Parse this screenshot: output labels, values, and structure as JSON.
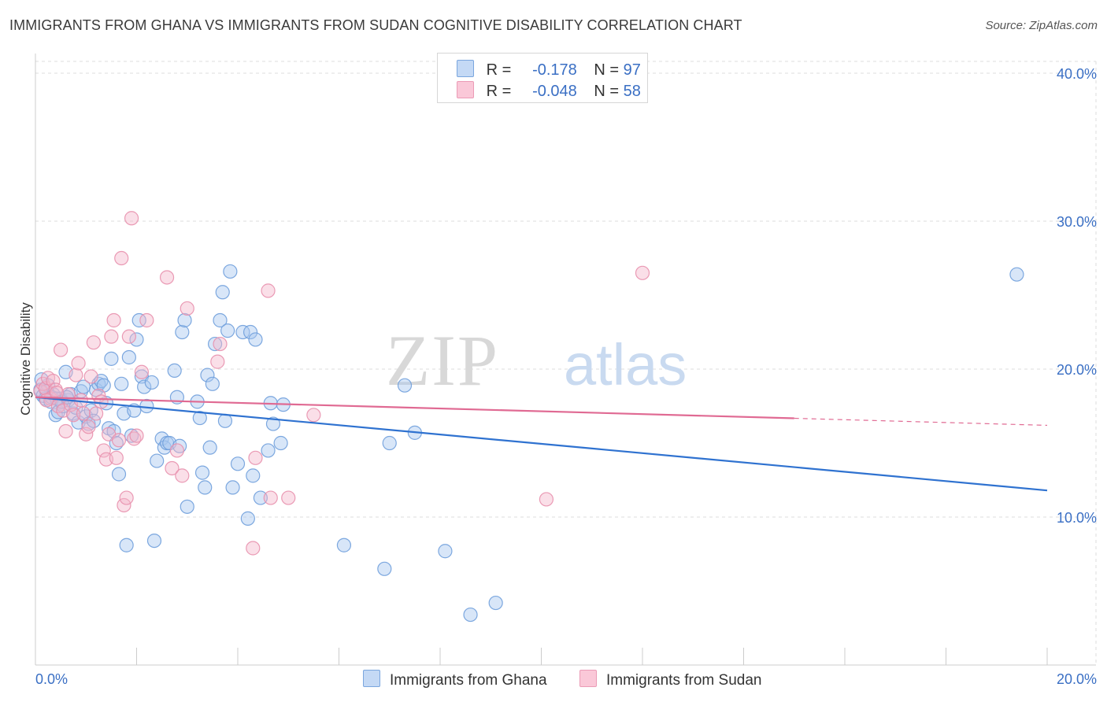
{
  "title": "IMMIGRANTS FROM GHANA VS IMMIGRANTS FROM SUDAN COGNITIVE DISABILITY CORRELATION CHART",
  "source": "Source: ZipAtlas.com",
  "watermark": {
    "zip": "ZIP",
    "atlas": "atlas"
  },
  "legend": {
    "ghana": {
      "r_label": "R =",
      "r_value": "-0.178",
      "n_label": "N =",
      "n_value": "97"
    },
    "sudan": {
      "r_label": "R =",
      "r_value": "-0.048",
      "n_label": "N =",
      "n_value": "58"
    }
  },
  "bottom_legend": {
    "ghana": "Immigrants from Ghana",
    "sudan": "Immigrants from Sudan"
  },
  "colors": {
    "ghana_fill": "#a9c8f0",
    "ghana_stroke": "#6f9fdb",
    "ghana_line": "#2f72d0",
    "sudan_fill": "#f5b8cc",
    "sudan_stroke": "#e890ad",
    "sudan_line": "#e06a93",
    "axis_text": "#3a6fc4",
    "grid": "#dddddd"
  },
  "chart_data": {
    "type": "scatter",
    "title": "IMMIGRANTS FROM GHANA VS IMMIGRANTS FROM SUDAN COGNITIVE DISABILITY CORRELATION CHART",
    "xlabel": "",
    "ylabel": "Cognitive Disability",
    "xlim": [
      0,
      20
    ],
    "ylim": [
      0,
      40.8
    ],
    "x_tick_labels": [
      "0.0%",
      "20.0%"
    ],
    "y_ticks": [
      10,
      20,
      30,
      40
    ],
    "y_tick_labels": [
      "10.0%",
      "20.0%",
      "30.0%",
      "40.0%"
    ],
    "grid": true,
    "series": [
      {
        "name": "Immigrants from Ghana",
        "r": -0.178,
        "n": 97,
        "trend": {
          "x": [
            0,
            20
          ],
          "y": [
            18.1,
            11.8
          ],
          "dashed_from": null
        },
        "points": [
          [
            0.1,
            18.6
          ],
          [
            0.15,
            18.2
          ],
          [
            0.2,
            18.0
          ],
          [
            0.25,
            18.9
          ],
          [
            0.3,
            17.8
          ],
          [
            0.35,
            18.3
          ],
          [
            0.4,
            16.9
          ],
          [
            0.45,
            17.1
          ],
          [
            0.5,
            18.0
          ],
          [
            0.55,
            17.5
          ],
          [
            0.6,
            19.8
          ],
          [
            0.65,
            17.9
          ],
          [
            0.7,
            18.3
          ],
          [
            0.75,
            17.0
          ],
          [
            0.8,
            17.4
          ],
          [
            0.85,
            16.4
          ],
          [
            0.9,
            18.5
          ],
          [
            0.95,
            18.8
          ],
          [
            1.0,
            16.8
          ],
          [
            1.05,
            16.3
          ],
          [
            1.1,
            17.2
          ],
          [
            1.15,
            16.5
          ],
          [
            1.2,
            18.6
          ],
          [
            1.25,
            19.0
          ],
          [
            1.3,
            19.2
          ],
          [
            1.35,
            18.9
          ],
          [
            1.4,
            17.7
          ],
          [
            1.45,
            16.0
          ],
          [
            1.5,
            20.7
          ],
          [
            1.55,
            15.8
          ],
          [
            1.6,
            15.0
          ],
          [
            1.65,
            12.9
          ],
          [
            1.7,
            19.0
          ],
          [
            1.75,
            17.0
          ],
          [
            1.8,
            8.1
          ],
          [
            1.85,
            20.8
          ],
          [
            1.9,
            15.5
          ],
          [
            1.95,
            17.2
          ],
          [
            2.0,
            22.0
          ],
          [
            2.05,
            23.3
          ],
          [
            2.1,
            19.5
          ],
          [
            2.15,
            18.8
          ],
          [
            2.2,
            17.5
          ],
          [
            2.3,
            19.1
          ],
          [
            2.35,
            8.4
          ],
          [
            2.4,
            13.8
          ],
          [
            2.5,
            15.3
          ],
          [
            2.55,
            14.7
          ],
          [
            2.6,
            15.0
          ],
          [
            2.65,
            15.0
          ],
          [
            2.75,
            19.9
          ],
          [
            2.8,
            18.1
          ],
          [
            2.85,
            14.8
          ],
          [
            2.9,
            22.5
          ],
          [
            2.95,
            23.3
          ],
          [
            3.0,
            10.7
          ],
          [
            3.2,
            17.8
          ],
          [
            3.25,
            16.7
          ],
          [
            3.3,
            13.0
          ],
          [
            3.35,
            12.0
          ],
          [
            3.4,
            19.6
          ],
          [
            3.45,
            14.7
          ],
          [
            3.5,
            19.0
          ],
          [
            3.55,
            21.7
          ],
          [
            3.65,
            23.3
          ],
          [
            3.7,
            25.2
          ],
          [
            3.75,
            16.5
          ],
          [
            3.8,
            22.6
          ],
          [
            3.85,
            26.6
          ],
          [
            3.9,
            12.0
          ],
          [
            4.0,
            13.6
          ],
          [
            4.1,
            22.5
          ],
          [
            4.2,
            9.9
          ],
          [
            4.25,
            22.5
          ],
          [
            4.3,
            12.8
          ],
          [
            4.35,
            22.0
          ],
          [
            4.45,
            11.3
          ],
          [
            4.6,
            14.5
          ],
          [
            4.65,
            17.7
          ],
          [
            4.7,
            16.3
          ],
          [
            4.85,
            15.0
          ],
          [
            4.9,
            17.6
          ],
          [
            6.1,
            8.1
          ],
          [
            6.9,
            6.5
          ],
          [
            7.0,
            15.0
          ],
          [
            7.3,
            18.9
          ],
          [
            7.5,
            15.7
          ],
          [
            8.1,
            7.7
          ],
          [
            8.6,
            3.4
          ],
          [
            9.1,
            4.2
          ],
          [
            19.4,
            26.4
          ],
          [
            0.12,
            19.3
          ],
          [
            0.22,
            18.5
          ],
          [
            0.32,
            18.1
          ],
          [
            0.42,
            18.0
          ],
          [
            0.52,
            17.8
          ],
          [
            0.62,
            18.1
          ]
        ]
      },
      {
        "name": "Immigrants from Sudan",
        "r": -0.048,
        "n": 58,
        "trend": {
          "x": [
            0,
            20
          ],
          "y": [
            18.1,
            16.2
          ],
          "dashed_from": 15.0
        },
        "points": [
          [
            0.1,
            18.5
          ],
          [
            0.15,
            19.0
          ],
          [
            0.2,
            18.7
          ],
          [
            0.25,
            19.4
          ],
          [
            0.3,
            18.0
          ],
          [
            0.35,
            19.2
          ],
          [
            0.4,
            18.6
          ],
          [
            0.45,
            17.5
          ],
          [
            0.5,
            21.3
          ],
          [
            0.55,
            17.2
          ],
          [
            0.6,
            15.8
          ],
          [
            0.65,
            18.3
          ],
          [
            0.7,
            17.6
          ],
          [
            0.75,
            16.9
          ],
          [
            0.8,
            19.6
          ],
          [
            0.85,
            20.4
          ],
          [
            0.9,
            17.9
          ],
          [
            0.95,
            17.0
          ],
          [
            1.0,
            15.6
          ],
          [
            1.05,
            16.1
          ],
          [
            1.1,
            19.5
          ],
          [
            1.15,
            21.8
          ],
          [
            1.2,
            17.0
          ],
          [
            1.25,
            18.2
          ],
          [
            1.3,
            17.8
          ],
          [
            1.35,
            14.5
          ],
          [
            1.4,
            13.9
          ],
          [
            1.45,
            15.6
          ],
          [
            1.5,
            22.2
          ],
          [
            1.55,
            23.3
          ],
          [
            1.6,
            14.0
          ],
          [
            1.65,
            15.2
          ],
          [
            1.7,
            27.5
          ],
          [
            1.75,
            10.8
          ],
          [
            1.8,
            11.3
          ],
          [
            1.85,
            22.2
          ],
          [
            1.9,
            30.2
          ],
          [
            1.95,
            15.3
          ],
          [
            2.0,
            15.5
          ],
          [
            2.1,
            19.8
          ],
          [
            2.2,
            23.3
          ],
          [
            2.6,
            26.2
          ],
          [
            2.7,
            13.3
          ],
          [
            2.8,
            14.5
          ],
          [
            2.9,
            12.8
          ],
          [
            3.0,
            24.1
          ],
          [
            3.6,
            20.5
          ],
          [
            3.65,
            21.7
          ],
          [
            4.3,
            7.9
          ],
          [
            4.35,
            14.0
          ],
          [
            4.6,
            25.3
          ],
          [
            4.65,
            11.3
          ],
          [
            5.0,
            11.3
          ],
          [
            5.5,
            16.9
          ],
          [
            10.1,
            11.2
          ],
          [
            12.0,
            26.5
          ],
          [
            0.22,
            17.9
          ],
          [
            0.42,
            18.4
          ]
        ]
      }
    ]
  }
}
